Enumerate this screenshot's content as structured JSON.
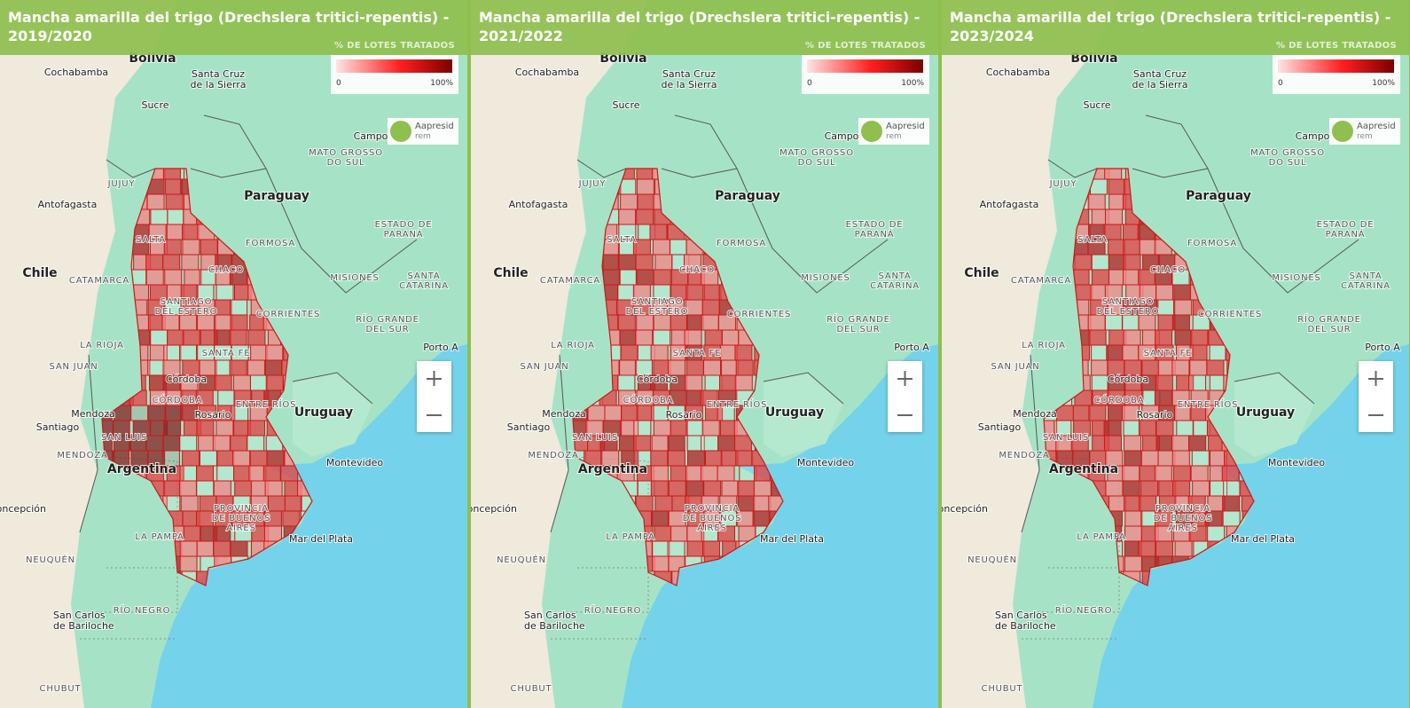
{
  "panels": [
    {
      "title_lines": [
        "Mancha amarilla del trigo (Drechslera tritici-repentis) -",
        "2019/2020"
      ]
    },
    {
      "title_lines": [
        "Mancha amarilla del trigo (Drechslera tritici-repentis) -",
        "2021/2022"
      ]
    },
    {
      "title_lines": [
        "Mancha amarilla del trigo (Drechslera tritici-repentis) -",
        "2023/2024"
      ]
    }
  ],
  "legend": {
    "title": "% DE LOTES TRATADOS",
    "min_label": "0",
    "max_label": "100%"
  },
  "logo": {
    "name": "Aapresid",
    "sub": "rem"
  },
  "map_labels": [
    {
      "lines": [
        "Bolivia"
      ]
    },
    {
      "lines": [
        "Cochabamba"
      ]
    },
    {
      "lines": [
        "Santa Cruz",
        "de la Sierra"
      ]
    },
    {
      "lines": [
        "Sucre"
      ]
    },
    {
      "lines": [
        "Campo"
      ]
    },
    {
      "lines": [
        "MATO GROSSO",
        "DO SUL"
      ]
    },
    {
      "lines": [
        "JUJUY"
      ]
    },
    {
      "lines": [
        "Antofagasta"
      ]
    },
    {
      "lines": [
        "Paraguay"
      ]
    },
    {
      "lines": [
        "ESTADO DE",
        "PARANÁ"
      ]
    },
    {
      "lines": [
        "SALTA"
      ]
    },
    {
      "lines": [
        "FORMOSA"
      ]
    },
    {
      "lines": [
        "Chile"
      ]
    },
    {
      "lines": [
        "CATAMARCA"
      ]
    },
    {
      "lines": [
        "CHACO"
      ]
    },
    {
      "lines": [
        "MISIONES"
      ]
    },
    {
      "lines": [
        "SANTA",
        "CATARINA"
      ]
    },
    {
      "lines": [
        "SANTIAGO",
        "DEL ESTERO"
      ]
    },
    {
      "lines": [
        "CORRIENTES"
      ]
    },
    {
      "lines": [
        "RÍO GRANDE",
        "DEL SUR"
      ]
    },
    {
      "lines": [
        "LA RIOJA"
      ]
    },
    {
      "lines": [
        "SANTA FE"
      ]
    },
    {
      "lines": [
        "Porto A"
      ]
    },
    {
      "lines": [
        "SAN JUAN"
      ]
    },
    {
      "lines": [
        "Córdoba"
      ]
    },
    {
      "lines": [
        "CÓRDOBA"
      ]
    },
    {
      "lines": [
        "ENTRE RÍOS"
      ]
    },
    {
      "lines": [
        "Rosario"
      ]
    },
    {
      "lines": [
        "Uruguay"
      ]
    },
    {
      "lines": [
        "Mendoza"
      ]
    },
    {
      "lines": [
        "Santiago"
      ]
    },
    {
      "lines": [
        "SAN LUIS"
      ]
    },
    {
      "lines": [
        "MENDOZA"
      ]
    },
    {
      "lines": [
        "Montevideo"
      ]
    },
    {
      "lines": [
        "Argentina"
      ]
    },
    {
      "lines": [
        "Concepción"
      ]
    },
    {
      "lines": [
        "PROVINCIA",
        "DE BUENOS",
        "AIRES"
      ]
    },
    {
      "lines": [
        "LA PAMPA"
      ]
    },
    {
      "lines": [
        "Mar del Plata"
      ]
    },
    {
      "lines": [
        "NEUQUÉN"
      ]
    },
    {
      "lines": [
        "RÍO NEGRO"
      ]
    },
    {
      "lines": [
        "San Carlos",
        "de Bariloche"
      ]
    },
    {
      "lines": [
        "CHUBUT"
      ]
    }
  ]
}
